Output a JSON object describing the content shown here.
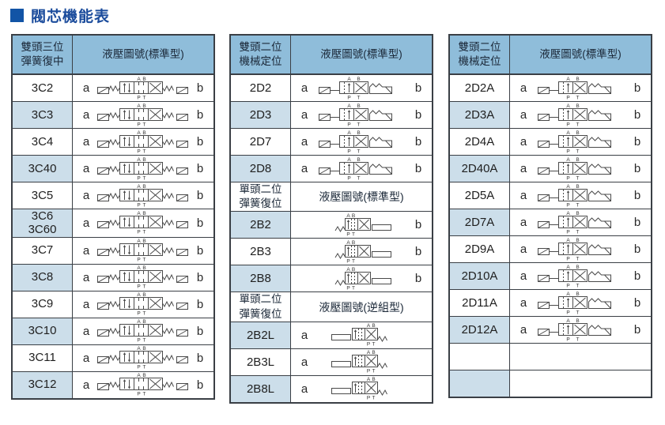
{
  "title": "閥芯機能表",
  "colors": {
    "title_square": "#1254A6",
    "title_text": "#1B4C9C",
    "header_bg": "#8FBDDA",
    "row_alt_bg": "#CCDEEA",
    "border": "#3A3F45"
  },
  "position_labels": {
    "a": "a",
    "b": "b"
  },
  "tables": [
    {
      "id": "3c",
      "header": {
        "col1": "雙頭三位\n彈簧復中",
        "col2": "液壓圖號(標準型)"
      },
      "rows": [
        {
          "code": "3C2",
          "a": "a",
          "b": "b",
          "symbol": "three-position-double-solenoid",
          "shaded": false
        },
        {
          "code": "3C3",
          "a": "a",
          "b": "b",
          "symbol": "three-position-double-solenoid",
          "shaded": true
        },
        {
          "code": "3C4",
          "a": "a",
          "b": "b",
          "symbol": "three-position-double-solenoid",
          "shaded": false
        },
        {
          "code": "3C40",
          "a": "a",
          "b": "b",
          "symbol": "three-position-double-solenoid",
          "shaded": true
        },
        {
          "code": "3C5",
          "a": "a",
          "b": "b",
          "symbol": "three-position-double-solenoid",
          "shaded": false
        },
        {
          "code": "3C6\n3C60",
          "a": "a",
          "b": "b",
          "symbol": "three-position-double-solenoid",
          "shaded": true
        },
        {
          "code": "3C7",
          "a": "a",
          "b": "b",
          "symbol": "three-position-double-solenoid",
          "shaded": false
        },
        {
          "code": "3C8",
          "a": "a",
          "b": "b",
          "symbol": "three-position-double-solenoid",
          "shaded": true
        },
        {
          "code": "3C9",
          "a": "a",
          "b": "b",
          "symbol": "three-position-double-solenoid",
          "shaded": false
        },
        {
          "code": "3C10",
          "a": "a",
          "b": "b",
          "symbol": "three-position-double-solenoid",
          "shaded": true
        },
        {
          "code": "3C11",
          "a": "a",
          "b": "b",
          "symbol": "three-position-double-solenoid",
          "shaded": false
        },
        {
          "code": "3C12",
          "a": "a",
          "b": "b",
          "symbol": "three-position-double-solenoid",
          "shaded": true
        }
      ]
    },
    {
      "id": "2d2b",
      "header": {
        "col1": "雙頭二位\n機械定位",
        "col2": "液壓圖號(標準型)"
      },
      "rows": [
        {
          "code": "2D2",
          "a": "a",
          "b": "b",
          "symbol": "two-position-double-solenoid-detent",
          "shaded": false
        },
        {
          "code": "2D3",
          "a": "a",
          "b": "b",
          "symbol": "two-position-double-solenoid-detent",
          "shaded": true
        },
        {
          "code": "2D7",
          "a": "a",
          "b": "b",
          "symbol": "two-position-double-solenoid-detent",
          "shaded": false
        },
        {
          "code": "2D8",
          "a": "a",
          "b": "b",
          "symbol": "two-position-double-solenoid-detent",
          "shaded": true
        },
        {
          "kind": "subheader",
          "col1": "單頭二位\n彈簧復位",
          "col2": "液壓圖號(標準型)"
        },
        {
          "code": "2B2",
          "a": "",
          "b": "b",
          "symbol": "two-position-single-solenoid-spring",
          "shaded": true
        },
        {
          "code": "2B3",
          "a": "",
          "b": "b",
          "symbol": "two-position-single-solenoid-spring",
          "shaded": false
        },
        {
          "code": "2B8",
          "a": "",
          "b": "b",
          "symbol": "two-position-single-solenoid-spring",
          "shaded": true
        },
        {
          "kind": "subheader",
          "col1": "單頭二位\n彈簧復位",
          "col2": "液壓圖號(逆組型)"
        },
        {
          "code": "2B2L",
          "a": "a",
          "b": "",
          "symbol": "two-position-single-solenoid-spring-reverse",
          "shaded": true
        },
        {
          "code": "2B3L",
          "a": "a",
          "b": "",
          "symbol": "two-position-single-solenoid-spring-reverse",
          "shaded": false
        },
        {
          "code": "2B8L",
          "a": "a",
          "b": "",
          "symbol": "two-position-single-solenoid-spring-reverse",
          "shaded": true
        }
      ]
    },
    {
      "id": "2da",
      "header": {
        "col1": "雙頭二位\n機械定位",
        "col2": "液壓圖號(標準型)"
      },
      "rows": [
        {
          "code": "2D2A",
          "a": "a",
          "b": "b",
          "symbol": "two-position-double-solenoid-detent",
          "shaded": false
        },
        {
          "code": "2D3A",
          "a": "a",
          "b": "b",
          "symbol": "two-position-double-solenoid-detent",
          "shaded": true
        },
        {
          "code": "2D4A",
          "a": "a",
          "b": "b",
          "symbol": "two-position-double-solenoid-detent",
          "shaded": false
        },
        {
          "code": "2D40A",
          "a": "a",
          "b": "b",
          "symbol": "two-position-double-solenoid-detent",
          "shaded": true
        },
        {
          "code": "2D5A",
          "a": "a",
          "b": "b",
          "symbol": "two-position-double-solenoid-detent",
          "shaded": false
        },
        {
          "code": "2D7A",
          "a": "a",
          "b": "b",
          "symbol": "two-position-double-solenoid-detent",
          "shaded": true
        },
        {
          "code": "2D9A",
          "a": "a",
          "b": "b",
          "symbol": "two-position-double-solenoid-detent",
          "shaded": false
        },
        {
          "code": "2D10A",
          "a": "a",
          "b": "b",
          "symbol": "two-position-double-solenoid-detent",
          "shaded": true
        },
        {
          "code": "2D11A",
          "a": "a",
          "b": "b",
          "symbol": "two-position-double-solenoid-detent",
          "shaded": false
        },
        {
          "code": "2D12A",
          "a": "a",
          "b": "b",
          "symbol": "two-position-double-solenoid-detent",
          "shaded": true
        },
        {
          "kind": "empty",
          "shaded": false
        },
        {
          "kind": "empty",
          "shaded": true
        }
      ]
    }
  ]
}
